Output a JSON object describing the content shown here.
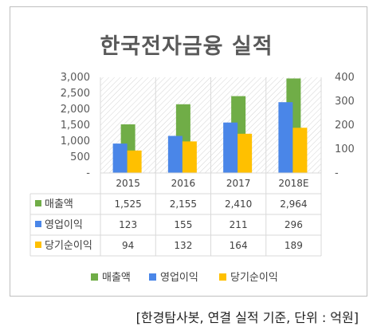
{
  "chart_data": {
    "type": "bar",
    "title": "한국전자금융 실적",
    "categories": [
      "2015",
      "2016",
      "2017",
      "2018E"
    ],
    "series": [
      {
        "name": "매출액",
        "axis": "left",
        "color": "#70ad47",
        "values": [
          1525,
          2155,
          2410,
          2964
        ]
      },
      {
        "name": "영업이익",
        "axis": "right",
        "color": "#4a86e8",
        "values": [
          123,
          155,
          211,
          296
        ]
      },
      {
        "name": "당기순이익",
        "axis": "right",
        "color": "#ffc000",
        "values": [
          94,
          132,
          164,
          189
        ]
      }
    ],
    "left_axis": {
      "ylim": [
        0,
        3000
      ],
      "ticks": [
        0,
        500,
        1000,
        1500,
        2000,
        2500,
        3000
      ],
      "tick_labels": [
        "-",
        "500",
        "1,000",
        "1,500",
        "2,000",
        "2,500",
        "3,000"
      ]
    },
    "right_axis": {
      "ylim": [
        0,
        400
      ],
      "ticks": [
        0,
        100,
        200,
        300,
        400
      ],
      "tick_labels": [
        "-",
        "100",
        "200",
        "300",
        "400"
      ]
    },
    "data_table": {
      "rows": [
        {
          "label": "매출액",
          "values": [
            "1,525",
            "2,155",
            "2,410",
            "2,964"
          ]
        },
        {
          "label": "영업이익",
          "values": [
            "123",
            "155",
            "211",
            "296"
          ]
        },
        {
          "label": "당기순이익",
          "values": [
            "94",
            "132",
            "164",
            "189"
          ]
        }
      ]
    },
    "legend_position": "bottom",
    "plot_background": "hatched",
    "source": "[한경탐사봇, 연결 실적 기준, 단위 : 억원]"
  }
}
